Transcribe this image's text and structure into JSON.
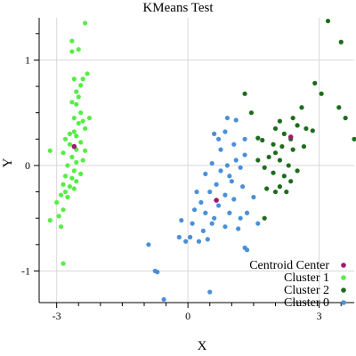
{
  "chart_data": {
    "type": "scatter",
    "title": "KMeans Test",
    "xlabel": "X",
    "ylabel": "Y",
    "xlim": [
      -3.4,
      3.8
    ],
    "ylim": [
      -1.3,
      1.4
    ],
    "xticks": [
      -3,
      0,
      3
    ],
    "yticks": [
      -1,
      0,
      1
    ],
    "grid": true,
    "legend_position": "bottom-right",
    "series": [
      {
        "name": "Centroid Center",
        "color": "#9a1b6f",
        "points": [
          [
            -2.6,
            0.18
          ],
          [
            0.65,
            -0.33
          ],
          [
            2.35,
            0.27
          ]
        ]
      },
      {
        "name": "Cluster 1",
        "color": "#55ee44",
        "points": [
          [
            -2.35,
            1.35
          ],
          [
            -2.65,
            1.18
          ],
          [
            -2.5,
            1.1
          ],
          [
            -2.65,
            1.08
          ],
          [
            -2.3,
            0.87
          ],
          [
            -2.4,
            0.82
          ],
          [
            -2.6,
            0.82
          ],
          [
            -2.45,
            0.76
          ],
          [
            -2.55,
            0.7
          ],
          [
            -2.5,
            0.65
          ],
          [
            -2.65,
            0.6
          ],
          [
            -2.55,
            0.58
          ],
          [
            -2.45,
            0.5
          ],
          [
            -2.6,
            0.45
          ],
          [
            -2.4,
            0.42
          ],
          [
            -2.25,
            0.45
          ],
          [
            -2.5,
            0.4
          ],
          [
            -2.35,
            0.35
          ],
          [
            -2.6,
            0.32
          ],
          [
            -2.7,
            0.3
          ],
          [
            -2.55,
            0.28
          ],
          [
            -2.8,
            0.25
          ],
          [
            -2.45,
            0.22
          ],
          [
            -2.7,
            0.2
          ],
          [
            -2.55,
            0.15
          ],
          [
            -2.35,
            0.14
          ],
          [
            -3.15,
            0.14
          ],
          [
            -2.85,
            0.12
          ],
          [
            -2.65,
            0.08
          ],
          [
            -2.4,
            0.05
          ],
          [
            -2.55,
            0.03
          ],
          [
            -2.75,
            0.0
          ],
          [
            -2.6,
            -0.05
          ],
          [
            -2.45,
            -0.08
          ],
          [
            -2.8,
            -0.1
          ],
          [
            -2.65,
            -0.12
          ],
          [
            -2.55,
            -0.15
          ],
          [
            -2.85,
            -0.18
          ],
          [
            -2.7,
            -0.2
          ],
          [
            -2.6,
            -0.22
          ],
          [
            -2.8,
            -0.25
          ],
          [
            -2.9,
            -0.28
          ],
          [
            -2.75,
            -0.3
          ],
          [
            -3.0,
            -0.35
          ],
          [
            -2.85,
            -0.42
          ],
          [
            -3.15,
            -0.52
          ],
          [
            -2.95,
            -0.48
          ],
          [
            -2.9,
            -0.58
          ],
          [
            -2.85,
            -0.93
          ]
        ]
      },
      {
        "name": "Cluster 2",
        "color": "#1e6b1e",
        "points": [
          [
            3.2,
            1.37
          ],
          [
            3.5,
            1.17
          ],
          [
            2.9,
            0.78
          ],
          [
            3.05,
            0.68
          ],
          [
            1.3,
            0.68
          ],
          [
            3.45,
            0.55
          ],
          [
            3.6,
            0.45
          ],
          [
            1.45,
            0.5
          ],
          [
            2.6,
            0.55
          ],
          [
            2.4,
            0.45
          ],
          [
            2.1,
            0.42
          ],
          [
            2.0,
            0.35
          ],
          [
            2.5,
            0.38
          ],
          [
            2.7,
            0.35
          ],
          [
            2.85,
            0.33
          ],
          [
            2.2,
            0.3
          ],
          [
            2.35,
            0.25
          ],
          [
            1.6,
            0.26
          ],
          [
            1.95,
            0.2
          ],
          [
            2.15,
            0.18
          ],
          [
            2.4,
            0.15
          ],
          [
            2.65,
            0.18
          ],
          [
            1.7,
            0.24
          ],
          [
            2.0,
            0.12
          ],
          [
            1.85,
            0.08
          ],
          [
            2.1,
            0.05
          ],
          [
            1.6,
            0.05
          ],
          [
            2.3,
            0.0
          ],
          [
            1.75,
            -0.02
          ],
          [
            2.5,
            -0.05
          ],
          [
            1.95,
            -0.07
          ],
          [
            2.2,
            -0.1
          ],
          [
            2.35,
            -0.15
          ],
          [
            2.1,
            -0.2
          ],
          [
            1.8,
            -0.22
          ],
          [
            2.0,
            -0.25
          ],
          [
            2.25,
            -0.25
          ],
          [
            1.75,
            -0.5
          ],
          [
            3.8,
            0.25
          ]
        ]
      },
      {
        "name": "Cluster 0",
        "color": "#4a90d9",
        "points": [
          [
            0.9,
            0.45
          ],
          [
            1.1,
            0.43
          ],
          [
            0.85,
            0.32
          ],
          [
            1.3,
            0.25
          ],
          [
            0.6,
            0.3
          ],
          [
            0.7,
            0.25
          ],
          [
            1.05,
            0.2
          ],
          [
            0.75,
            0.15
          ],
          [
            1.3,
            0.1
          ],
          [
            1.1,
            0.05
          ],
          [
            0.55,
            0.02
          ],
          [
            0.9,
            0.0
          ],
          [
            1.2,
            -0.02
          ],
          [
            0.75,
            -0.05
          ],
          [
            0.95,
            -0.1
          ],
          [
            0.4,
            -0.08
          ],
          [
            1.0,
            -0.15
          ],
          [
            0.65,
            -0.18
          ],
          [
            1.25,
            -0.2
          ],
          [
            0.2,
            -0.25
          ],
          [
            0.5,
            -0.25
          ],
          [
            0.85,
            -0.28
          ],
          [
            1.05,
            -0.32
          ],
          [
            0.3,
            -0.35
          ],
          [
            0.7,
            -0.38
          ],
          [
            0.15,
            -0.42
          ],
          [
            0.95,
            -0.45
          ],
          [
            1.35,
            -0.45
          ],
          [
            0.4,
            -0.45
          ],
          [
            0.6,
            -0.5
          ],
          [
            1.2,
            -0.5
          ],
          [
            -0.15,
            -0.52
          ],
          [
            0.1,
            -0.55
          ],
          [
            0.55,
            -0.55
          ],
          [
            0.85,
            -0.58
          ],
          [
            0.35,
            -0.62
          ],
          [
            1.15,
            -0.6
          ],
          [
            0.05,
            -0.68
          ],
          [
            -0.2,
            -0.68
          ],
          [
            0.45,
            -0.7
          ],
          [
            1.5,
            -0.3
          ],
          [
            1.6,
            -0.55
          ],
          [
            1.3,
            -0.78
          ],
          [
            1.35,
            -0.8
          ],
          [
            -0.9,
            -0.75
          ],
          [
            -0.75,
            -1.0
          ],
          [
            -0.7,
            -1.01
          ],
          [
            0.5,
            -1.2
          ],
          [
            -0.55,
            -1.27
          ],
          [
            -0.05,
            -0.72
          ],
          [
            0.25,
            -0.72
          ]
        ]
      }
    ]
  }
}
